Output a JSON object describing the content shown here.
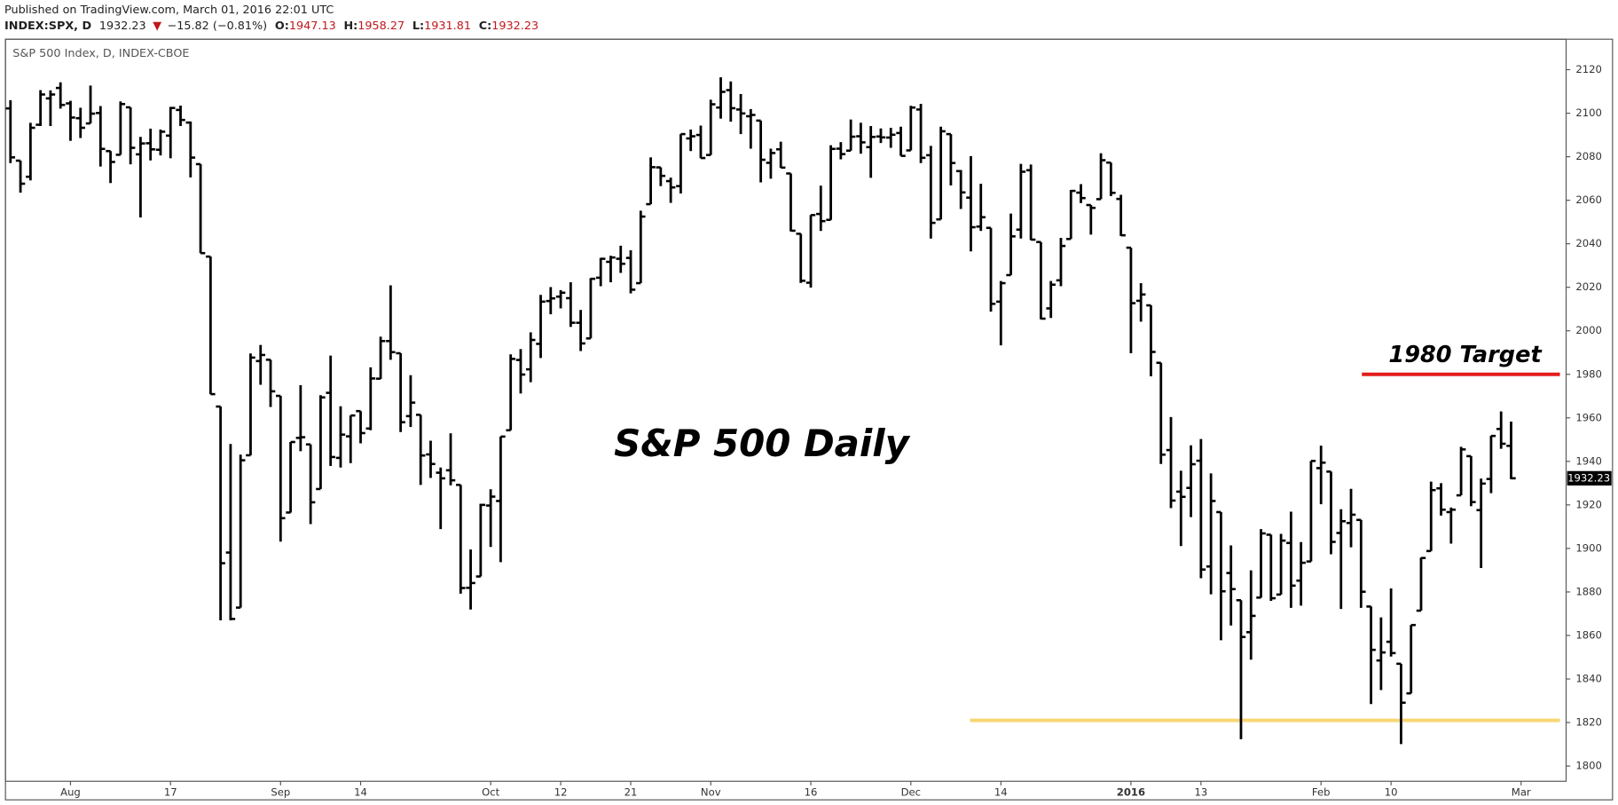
{
  "header": {
    "published": "Published on TradingView.com, March 01, 2016 22:01 UTC",
    "symbol": "INDEX:SPX, D",
    "change": "−15.82 (−0.81%)",
    "o": "O:",
    "h": "H:",
    "l": "L:",
    "c": "C:"
  },
  "chart_data": {
    "type": "ohlc",
    "title": "S&P 500 Index, D, INDEX-CBOE",
    "annotation": "S&P 500 Daily",
    "levels": [
      {
        "name": "1980 Target",
        "value": 1980,
        "color": "#e41c1c"
      },
      {
        "value": 1821,
        "color": "#f7d774"
      }
    ],
    "color": "#000000",
    "ylim": [
      1793,
      2134
    ],
    "yticks": [
      1800,
      1820,
      1840,
      1860,
      1880,
      1900,
      1920,
      1940,
      1960,
      1980,
      2000,
      2020,
      2040,
      2060,
      2080,
      2100,
      2120
    ],
    "xlim": [
      -0.5,
      155.5
    ],
    "xticks": [
      {
        "value": 6,
        "label": "Aug"
      },
      {
        "value": 16,
        "label": "17"
      },
      {
        "value": 27,
        "label": "Sep"
      },
      {
        "value": 35,
        "label": "14"
      },
      {
        "value": 48,
        "label": "Oct"
      },
      {
        "value": 55,
        "label": "12"
      },
      {
        "value": 62,
        "label": "21"
      },
      {
        "value": 70,
        "label": "Nov"
      },
      {
        "value": 80,
        "label": "16"
      },
      {
        "value": 90,
        "label": "Dec"
      },
      {
        "value": 99,
        "label": "14"
      },
      {
        "value": 112,
        "label": "2016"
      },
      {
        "value": 119,
        "label": "13"
      },
      {
        "value": 131,
        "label": "Feb"
      },
      {
        "value": 138,
        "label": "10"
      },
      {
        "value": 151,
        "label": "Mar"
      }
    ],
    "open": [
      2102.2,
      2078.2,
      2070.8,
      2094.7,
      2106.8,
      2111.6,
      2104.5,
      2097.7,
      2095.3,
      2100.1,
      2082.6,
      2080.9,
      2102.7,
      2081.1,
      2086.2,
      2083.2,
      2089.7,
      2101.5,
      2095.7,
      2076.6,
      2034.1,
      1965.2,
      1898.1,
      1872.8,
      1942.8,
      1986.1,
      1986.7,
      1970.1,
      1916.5,
      1950.8,
      1947.8,
      1927.3,
      1971.5,
      1941.6,
      1951.5,
      1963.1,
      1955.1,
      1978.0,
      1995.3,
      1989.7,
      1960.8,
      1961.4,
      1943.2,
      1934.8,
      1935.9,
      1929.2,
      1881.9,
      1887.1,
      1919.7,
      1921.8,
      1954.3,
      1986.6,
      1982.3,
      1994.0,
      2013.7,
      2015.7,
      2015.0,
      2003.7,
      1996.5,
      2024.4,
      2031.7,
      2033.1,
      2033.5,
      2021.9,
      2058.2,
      2075.1,
      2068.8,
      2066.5,
      2088.4,
      2090.0,
      2080.8,
      2102.6,
      2110.6,
      2101.7,
      2098.6,
      2096.6,
      2077.2,
      2083.4,
      2072.3,
      2044.6,
      2022.1,
      2053.7,
      2051.0,
      2083.7,
      2082.8,
      2089.4,
      2084.4,
      2089.3,
      2088.8,
      2090.9,
      2082.9,
      2101.7,
      2080.7,
      2051.2,
      2090.4,
      2073.4,
      2061.2,
      2047.9,
      2047.3,
      2013.4,
      2025.6,
      2046.5,
      2073.8,
      2040.8,
      2010.3,
      2023.2,
      2042.2,
      2063.5,
      2057.8,
      2060.5,
      2077.3,
      2060.6,
      2038.2,
      2013.8,
      2011.7,
      1985.3,
      1945.2,
      1926.1,
      1927.8,
      1940.3,
      1891.7,
      1916.7,
      1888.7,
      1876.2,
      1861.5,
      1877.4,
      1906.3,
      1878.8,
      1902.5,
      1885.2,
      1894.0,
      1936.9,
      1935.3,
      1907.1,
      1911.7,
      1913.1,
      1873.3,
      1848.5,
      1857.1,
      1847.0,
      1833.4,
      1871.4,
      1898.8,
      1927.6,
      1916.7,
      1924.4,
      1942.4,
      1917.6,
      1931.9,
      1954.9,
      1947.13
    ],
    "high": [
      2106.0,
      2078.2,
      2095.6,
      2110.6,
      2110.5,
      2114.2,
      2105.7,
      2102.5,
      2112.7,
      2103.3,
      2082.6,
      2105.4,
      2102.7,
      2089.1,
      2092.9,
      2092.5,
      2102.9,
      2103.5,
      2096.2,
      2076.6,
      2034.1,
      1965.2,
      1948.0,
      1943.1,
      1989.6,
      1993.5,
      1986.7,
      1970.1,
      1948.9,
      1975.0,
      1947.8,
      1970.4,
      1988.6,
      1965.3,
      1961.1,
      1963.1,
      1983.2,
      1997.3,
      2020.9,
      1989.7,
      1979.6,
      1961.4,
      1949.5,
      1937.2,
      1952.9,
      1929.2,
      1899.5,
      1920.5,
      1927.2,
      1951.4,
      1989.2,
      1991.6,
      1999.3,
      2016.5,
      2020.1,
      2018.7,
      2022.3,
      2009.6,
      2024.2,
      2033.5,
      2034.5,
      2039.1,
      2037.0,
      2055.2,
      2079.7,
      2075.1,
      2070.4,
      2090.4,
      2092.5,
      2094.3,
      2106.2,
      2116.5,
      2114.6,
      2108.8,
      2101.9,
      2096.6,
      2083.7,
      2086.9,
      2072.3,
      2044.6,
      2053.2,
      2066.7,
      2085.3,
      2086.7,
      2097.1,
      2095.6,
      2094.1,
      2093.0,
      2093.3,
      2093.8,
      2103.4,
      2104.3,
      2085.0,
      2093.8,
      2090.4,
      2073.9,
      2080.3,
      2067.6,
      2047.3,
      2022.9,
      2053.9,
      2076.7,
      2076.4,
      2040.8,
      2022.9,
      2042.7,
      2064.7,
      2067.4,
      2057.8,
      2081.6,
      2077.3,
      2062.5,
      2038.2,
      2021.9,
      2011.7,
      1985.3,
      1960.4,
      1935.7,
      1947.4,
      1950.3,
      1934.5,
      1916.7,
      1901.4,
      1876.2,
      1889.9,
      1908.9,
      1906.3,
      1906.7,
      1916.9,
      1902.9,
      1940.2,
      1947.2,
      1935.3,
      1918.0,
      1927.4,
      1913.1,
      1873.3,
      1868.3,
      1881.6,
      1847.0,
      1864.8,
      1895.8,
      1930.7,
      1930.0,
      1918.8,
      1946.7,
      1942.4,
      1932.1,
      1951.8,
      1962.96,
      1958.27
    ],
    "low": [
      2077.1,
      2063.5,
      2069.1,
      2094.1,
      2094.1,
      2102.1,
      2087.3,
      2088.6,
      2095.3,
      2075.5,
      2067.9,
      2080.9,
      2076.5,
      2052.1,
      2078.3,
      2080.6,
      2079.3,
      2094.1,
      2070.5,
      2035.7,
      1970.9,
      1867.0,
      1867.0,
      1872.8,
      1942.8,
      1975.2,
      1965.0,
      1903.1,
      1916.5,
      1944.7,
      1911.2,
      1927.3,
      1937.9,
      1937.2,
      1939.2,
      1948.3,
      1954.3,
      1977.9,
      1986.7,
      1953.5,
      1955.8,
      1929.2,
      1932.4,
      1908.9,
      1929.0,
      1879.2,
      1871.9,
      1887.1,
      1900.7,
      1893.7,
      1954.3,
      1971.2,
      1976.4,
      1987.5,
      2007.6,
      2010.3,
      2001.8,
      1990.7,
      1996.5,
      2020.5,
      2022.3,
      2026.6,
      2017.2,
      2021.9,
      2058.2,
      2066.5,
      2058.8,
      2063.1,
      2082.6,
      2079.3,
      2080.8,
      2097.5,
      2096.1,
      2090.4,
      2083.7,
      2068.2,
      2069.9,
      2074.9,
      2045.7,
      2022.0,
      2019.9,
      2045.9,
      2051.0,
      2078.8,
      2082.8,
      2081.4,
      2070.3,
      2086.3,
      2084.1,
      2080.4,
      2082.9,
      2077.1,
      2042.4,
      2051.2,
      2066.8,
      2056.0,
      2036.5,
      2045.9,
      2008.8,
      1993.3,
      2025.6,
      2042.4,
      2041.7,
      2005.3,
      2005.9,
      2020.5,
      2042.2,
      2058.7,
      2044.2,
      2060.5,
      2061.9,
      2043.6,
      1989.7,
      2004.2,
      1979.1,
      1938.8,
      1918.5,
      1901.1,
      1914.4,
      1886.3,
      1878.9,
      1857.8,
      1864.6,
      1812.3,
      1848.9,
      1877.4,
      1875.9,
      1878.8,
      1872.7,
      1873.7,
      1894.0,
      1920.3,
      1897.3,
      1872.2,
      1900.5,
      1872.7,
      1828.5,
      1834.9,
      1850.3,
      1810.1,
      1833.4,
      1871.4,
      1898.8,
      1915.1,
      1902.2,
      1924.4,
      1919.4,
      1891.0,
      1925.4,
      1945.8,
      1931.81
    ],
    "close": [
      2079.7,
      2067.6,
      2093.3,
      2108.6,
      2108.6,
      2103.8,
      2098.0,
      2093.3,
      2099.8,
      2083.6,
      2077.6,
      2104.2,
      2084.1,
      2086.1,
      2083.4,
      2091.5,
      2102.4,
      2096.9,
      2079.6,
      2035.7,
      1970.9,
      1893.2,
      1867.6,
      1940.5,
      1987.7,
      1988.9,
      1972.2,
      1913.9,
      1948.9,
      1951.1,
      1921.2,
      1969.4,
      1942.0,
      1952.3,
      1961.1,
      1953.0,
      1978.1,
      1995.3,
      1990.2,
      1958.0,
      1967.0,
      1942.7,
      1938.8,
      1932.2,
      1931.3,
      1881.8,
      1884.1,
      1920.0,
      1923.8,
      1951.4,
      1987.1,
      1979.9,
      1995.8,
      2013.4,
      2014.9,
      2017.5,
      2003.7,
      1994.2,
      2023.9,
      2033.1,
      2033.7,
      2030.8,
      2018.9,
      2052.5,
      2075.2,
      2071.2,
      2065.9,
      2090.4,
      2089.4,
      2079.4,
      2104.1,
      2109.8,
      2102.3,
      2099.9,
      2099.2,
      2078.6,
      2081.7,
      2075.0,
      2046.0,
      2023.0,
      2053.2,
      2050.4,
      2083.6,
      2081.2,
      2089.2,
      2086.6,
      2089.1,
      2088.9,
      2090.1,
      2080.4,
      2102.6,
      2079.5,
      2049.6,
      2091.7,
      2077.1,
      2063.6,
      2047.6,
      2052.2,
      2012.4,
      2021.9,
      2043.4,
      2073.1,
      2041.9,
      2005.6,
      2021.2,
      2039.0,
      2064.3,
      2061.0,
      2056.5,
      2078.4,
      2063.4,
      2043.9,
      2012.7,
      2016.7,
      1990.3,
      1943.1,
      1922.0,
      1923.7,
      1938.7,
      1890.3,
      1921.8,
      1880.3,
      1881.3,
      1859.3,
      1869.0,
      1906.9,
      1877.1,
      1903.6,
      1882.9,
      1893.4,
      1940.2,
      1939.4,
      1903.0,
      1912.5,
      1915.5,
      1880.1,
      1853.4,
      1852.2,
      1851.9,
      1829.1,
      1864.8,
      1895.6,
      1926.8,
      1917.8,
      1917.8,
      1945.5,
      1921.3,
      1929.8,
      1951.7,
      1948.1,
      1932.23
    ]
  }
}
